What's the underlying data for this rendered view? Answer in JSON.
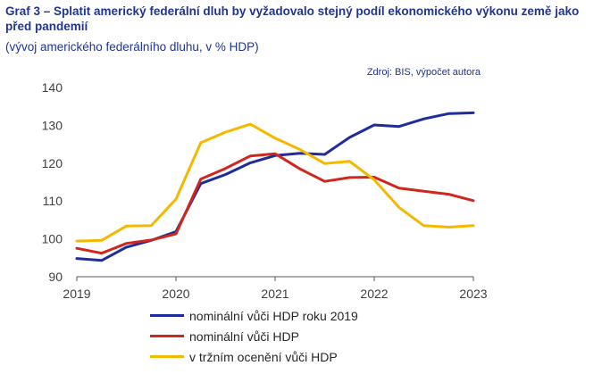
{
  "title": "Graf 3 – Splatit americký federální dluh by vyžadovalo stejný podíl ekonomického výkonu země jako před pandemií",
  "subtitle": "(vývoj amerického federálního dluhu, v % HDP)",
  "source": "Zdroj: BIS, výpočet autora",
  "chart_data": {
    "type": "line",
    "title": "Graf 3 – Splatit americký federální dluh by vyžadovalo stejný podíl ekonomického výkonu země jako před pandemií",
    "subtitle": "(vývoj amerického federálního dluhu, v % HDP)",
    "xlabel": "",
    "ylabel": "",
    "xlim": [
      2019,
      2023
    ],
    "ylim": [
      90,
      140
    ],
    "yticks": [
      90,
      100,
      110,
      120,
      130,
      140
    ],
    "xticks": [
      2019,
      2020,
      2021,
      2022,
      2023
    ],
    "xtick_labels": [
      "2019",
      "2020",
      "2021",
      "2022",
      "2023"
    ],
    "ytick_labels": [
      "90",
      "100",
      "110",
      "120",
      "130",
      "140"
    ],
    "x": [
      2019.0,
      2019.25,
      2019.5,
      2019.75,
      2020.0,
      2020.25,
      2020.5,
      2020.75,
      2021.0,
      2021.25,
      2021.5,
      2021.75,
      2022.0,
      2022.25,
      2022.5,
      2022.75,
      2023.0
    ],
    "grid": false,
    "legend_position": "bottom",
    "series": [
      {
        "name": "nominální vůči HDP roku 2019",
        "color": "#1f2c9e",
        "values": [
          94.8,
          94.3,
          97.8,
          99.6,
          101.9,
          114.6,
          117.0,
          120.1,
          122.0,
          122.6,
          122.3,
          126.8,
          130.1,
          129.7,
          131.7,
          133.1,
          133.3
        ]
      },
      {
        "name": "nominální vůči HDP",
        "color": "#d0271d",
        "values": [
          97.5,
          96.2,
          98.8,
          99.7,
          101.3,
          115.8,
          118.6,
          121.9,
          122.5,
          118.5,
          115.2,
          116.2,
          116.3,
          113.4,
          112.6,
          111.8,
          110.1
        ]
      },
      {
        "name": "v tržním ocenění vůči HDP",
        "color": "#f5b800",
        "values": [
          99.4,
          99.6,
          103.4,
          103.5,
          110.5,
          125.4,
          128.2,
          130.3,
          126.6,
          123.6,
          119.9,
          120.5,
          115.6,
          108.3,
          103.5,
          103.1,
          103.5
        ]
      }
    ]
  }
}
